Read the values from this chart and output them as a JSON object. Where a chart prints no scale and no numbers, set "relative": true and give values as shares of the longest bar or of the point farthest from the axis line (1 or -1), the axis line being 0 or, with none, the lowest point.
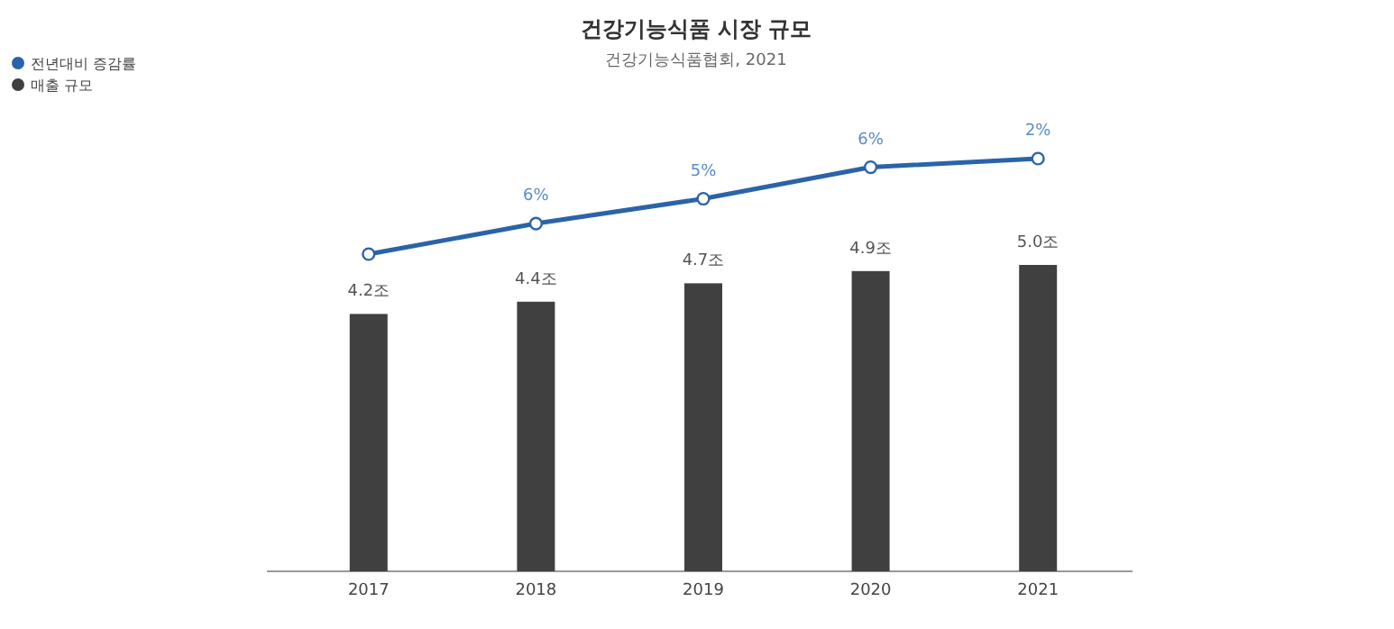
{
  "chart_data": [
    {
      "type": "line",
      "title": "건강기능식품 시장 규모",
      "subtitle": "건강기능식품협회, 2021",
      "relative": true,
      "categories": [
        "2017",
        "2018",
        "2019",
        "2020",
        "2021"
      ],
      "legend": "top left",
      "marker": "circle",
      "tick_labels": false,
      "series": [
        {
          "name": "전년대비 증감률",
          "color": "#2a64a8",
          "values": [
            0,
            0.32,
            0.58,
            0.91,
            1
          ]
        }
      ],
      "annotations": [
        {
          "text": "6%",
          "x": "2018",
          "y": 0.32
        },
        {
          "text": "5%",
          "x": "2019",
          "y": 0.58
        },
        {
          "text": "6%",
          "x": "2020",
          "y": 0.91
        },
        {
          "text": "2%",
          "x": "2021",
          "y": 1
        }
      ]
    },
    {
      "type": "bar",
      "categories": [
        "2017",
        "2018",
        "2019",
        "2020",
        "2021"
      ],
      "legend": "top left",
      "series": [
        {
          "name": "매출 규모",
          "color": "#404040",
          "values": [
            4.2,
            4.4,
            4.7,
            4.9,
            5.0
          ],
          "value_labels": [
            "4.2조",
            "4.4조",
            "4.7조",
            "4.9조",
            "5.0조"
          ]
        }
      ]
    }
  ]
}
